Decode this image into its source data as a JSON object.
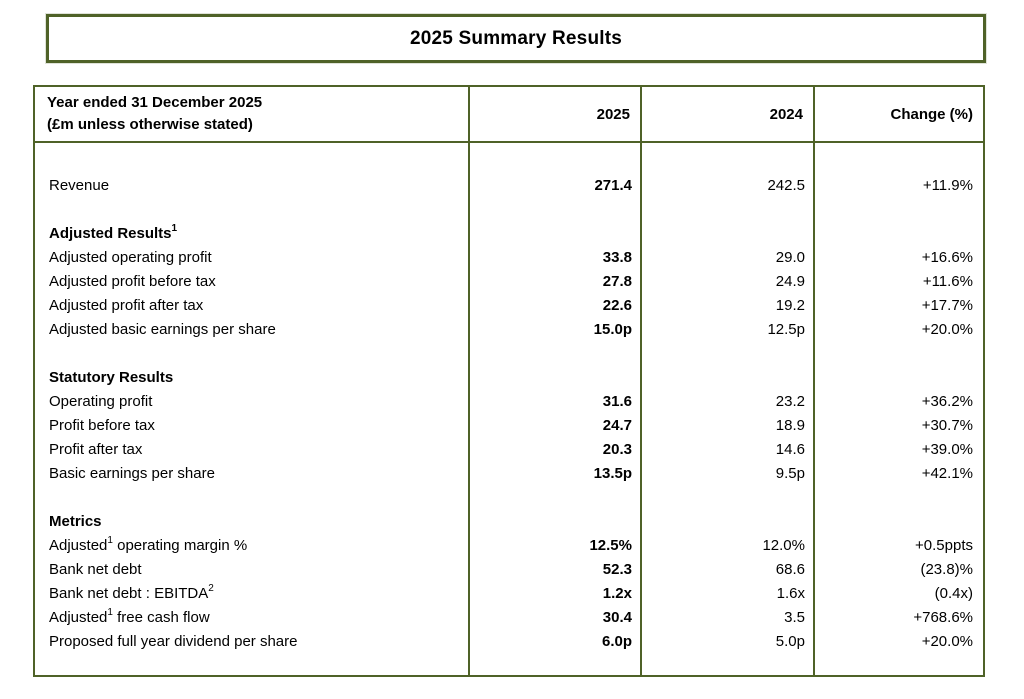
{
  "title": "2025 Summary Results",
  "colors": {
    "border": "#4f6228",
    "text": "#000000",
    "background": "#ffffff"
  },
  "table": {
    "header": {
      "label_line1": "Year ended 31 December 2025",
      "label_line2": "(£m unless otherwise stated)",
      "col_2025": "2025",
      "col_2024": "2024",
      "col_change": "Change (%)"
    },
    "rows": [
      {
        "type": "spacer",
        "pre": "",
        "sup": "",
        "post": "",
        "v2025": "",
        "v2024": "",
        "change": ""
      },
      {
        "type": "data",
        "pre": "Revenue",
        "sup": "",
        "post": "",
        "v2025": "271.4",
        "v2024": "242.5",
        "change": "+11.9%"
      },
      {
        "type": "spacer",
        "pre": "",
        "sup": "",
        "post": "",
        "v2025": "",
        "v2024": "",
        "change": ""
      },
      {
        "type": "section",
        "pre": "Adjusted Results",
        "sup": "1",
        "post": "",
        "v2025": "",
        "v2024": "",
        "change": ""
      },
      {
        "type": "data",
        "pre": "Adjusted operating profit",
        "sup": "",
        "post": "",
        "v2025": "33.8",
        "v2024": "29.0",
        "change": "+16.6%"
      },
      {
        "type": "data",
        "pre": "Adjusted profit before tax",
        "sup": "",
        "post": "",
        "v2025": "27.8",
        "v2024": "24.9",
        "change": "+11.6%"
      },
      {
        "type": "data",
        "pre": "Adjusted profit after tax",
        "sup": "",
        "post": "",
        "v2025": "22.6",
        "v2024": "19.2",
        "change": "+17.7%"
      },
      {
        "type": "data",
        "pre": "Adjusted basic earnings per share",
        "sup": "",
        "post": "",
        "v2025": "15.0p",
        "v2024": "12.5p",
        "change": "+20.0%"
      },
      {
        "type": "spacer",
        "pre": "",
        "sup": "",
        "post": "",
        "v2025": "",
        "v2024": "",
        "change": ""
      },
      {
        "type": "section",
        "pre": "Statutory Results",
        "sup": "",
        "post": "",
        "v2025": "",
        "v2024": "",
        "change": ""
      },
      {
        "type": "data",
        "pre": "Operating profit",
        "sup": "",
        "post": "",
        "v2025": "31.6",
        "v2024": "23.2",
        "change": "+36.2%"
      },
      {
        "type": "data",
        "pre": "Profit before tax",
        "sup": "",
        "post": "",
        "v2025": "24.7",
        "v2024": "18.9",
        "change": "+30.7%"
      },
      {
        "type": "data",
        "pre": "Profit after tax",
        "sup": "",
        "post": "",
        "v2025": "20.3",
        "v2024": "14.6",
        "change": "+39.0%"
      },
      {
        "type": "data",
        "pre": "Basic earnings per share",
        "sup": "",
        "post": "",
        "v2025": "13.5p",
        "v2024": "9.5p",
        "change": "+42.1%"
      },
      {
        "type": "spacer",
        "pre": "",
        "sup": "",
        "post": "",
        "v2025": "",
        "v2024": "",
        "change": ""
      },
      {
        "type": "section",
        "pre": "Metrics",
        "sup": "",
        "post": "",
        "v2025": "",
        "v2024": "",
        "change": ""
      },
      {
        "type": "data",
        "pre": "Adjusted",
        "sup": "1",
        "post": " operating margin %",
        "v2025": "12.5%",
        "v2024": "12.0%",
        "change": "+0.5ppts"
      },
      {
        "type": "data",
        "pre": "Bank net debt",
        "sup": "",
        "post": "",
        "v2025": "52.3",
        "v2024": "68.6",
        "change": "(23.8)%"
      },
      {
        "type": "data",
        "pre": "Bank net debt : EBITDA",
        "sup": "2",
        "post": "",
        "v2025": "1.2x",
        "v2024": "1.6x",
        "change": "(0.4x)"
      },
      {
        "type": "data",
        "pre": "Adjusted",
        "sup": "1",
        "post": " free cash flow",
        "v2025": "30.4",
        "v2024": "3.5",
        "change": "+768.6%"
      },
      {
        "type": "data",
        "pre": "Proposed full year dividend per share",
        "sup": "",
        "post": "",
        "v2025": "6.0p",
        "v2024": "5.0p",
        "change": "+20.0%"
      }
    ]
  }
}
